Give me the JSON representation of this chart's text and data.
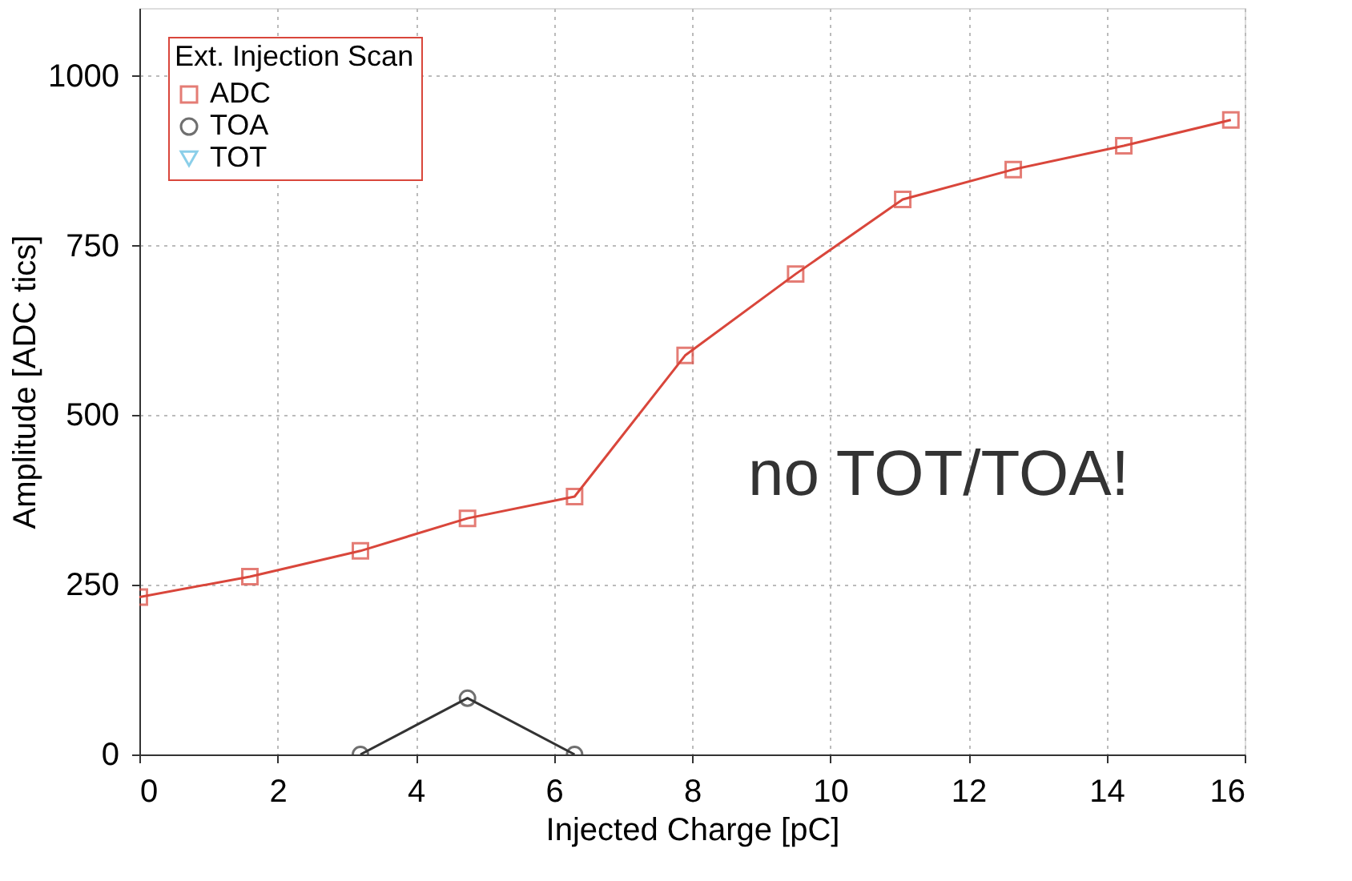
{
  "chart_data": {
    "type": "line",
    "xlabel": "Injected Charge [pC]",
    "ylabel": "Amplitude [ADC tics]",
    "legend_title": "Ext. Injection Scan",
    "series": [
      {
        "name": "ADC",
        "color": "#d9463b",
        "marker": "square",
        "x": [
          0,
          1.6,
          3.2,
          4.75,
          6.3,
          7.9,
          9.5,
          11.05,
          12.65,
          14.25,
          15.8
        ],
        "values": [
          232,
          262,
          300,
          348,
          380,
          588,
          708,
          818,
          862,
          897,
          935
        ]
      },
      {
        "name": "TOA",
        "color": "#333333",
        "marker": "circle",
        "x": [
          3.2,
          4.75,
          6.3
        ],
        "values": [
          0,
          83,
          0
        ]
      },
      {
        "name": "TOT",
        "color": "#5bbbe0",
        "marker": "triangle"
      }
    ],
    "xlim": [
      0,
      16
    ],
    "xticks": [
      0,
      2,
      4,
      6,
      8,
      10,
      12,
      14,
      16
    ],
    "ylim": [
      0,
      1100
    ],
    "yticks": [
      0,
      250,
      500,
      750,
      1000
    ],
    "grid": true,
    "legend": "top left",
    "line_style": "solid",
    "annotations": [
      "no TOT/TOA!"
    ]
  }
}
